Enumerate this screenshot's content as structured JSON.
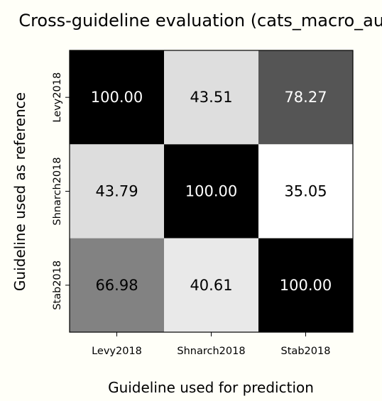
{
  "chart_data": {
    "type": "heatmap",
    "title": "Cross-guideline evaluation (cats_macro_auc)",
    "xlabel": "Guideline used for prediction",
    "ylabel": "Guideline used as reference",
    "x_categories": [
      "Levy2018",
      "Shnarch2018",
      "Stab2018"
    ],
    "y_categories": [
      "Levy2018",
      "Shnarch2018",
      "Stab2018"
    ],
    "values": [
      [
        100.0,
        43.51,
        78.27
      ],
      [
        43.79,
        100.0,
        35.05
      ],
      [
        66.98,
        40.61,
        100.0
      ]
    ],
    "value_format": "2 decimals",
    "colormap": "gray_r",
    "grid": false,
    "colorbar": false
  }
}
